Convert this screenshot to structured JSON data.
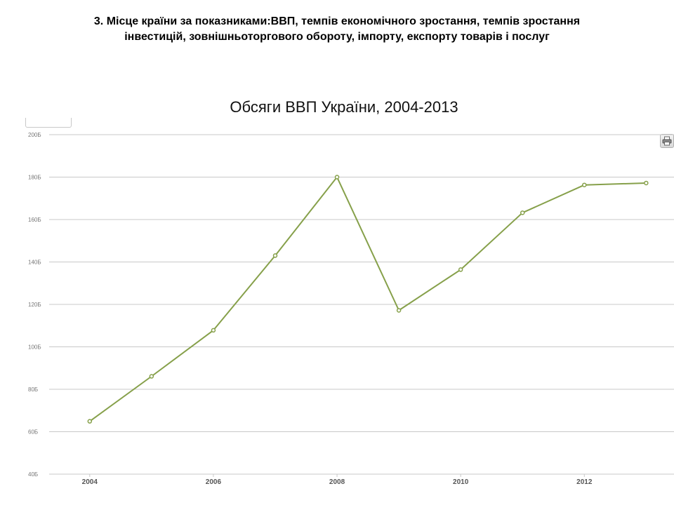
{
  "slide": {
    "heading_line1": "3. Місце країни за показниками:ВВП, темпів економічного зростання, темпів зростання",
    "heading_line2": "інвестицій, зовнішньоторгового обороту, імпорту, експорту товарів і послуг"
  },
  "toolbar": {
    "print_icon": "printer-icon"
  },
  "chart_data": {
    "type": "line",
    "title": "Обсяги ВВП України, 2004-2013",
    "xlabel": "",
    "ylabel": "",
    "x": [
      2004,
      2005,
      2006,
      2007,
      2008,
      2009,
      2010,
      2011,
      2012,
      2013
    ],
    "x_tick_labels": [
      "2004",
      "2006",
      "2008",
      "2010",
      "2012"
    ],
    "x_ticks": [
      2004,
      2006,
      2008,
      2010,
      2012
    ],
    "y_tick_labels": [
      "40Б",
      "60Б",
      "80Б",
      "100Б",
      "120Б",
      "140Б",
      "160Б",
      "180Б",
      "200Б"
    ],
    "y_ticks": [
      40,
      60,
      80,
      100,
      120,
      140,
      160,
      180,
      200
    ],
    "ylim": [
      40,
      200
    ],
    "grid": "horizontal",
    "legend": "none",
    "series": [
      {
        "color": "#86a04a",
        "values": [
          64.9,
          86.1,
          107.8,
          143.0,
          180.0,
          117.2,
          136.4,
          163.2,
          176.3,
          177.2
        ]
      }
    ]
  }
}
